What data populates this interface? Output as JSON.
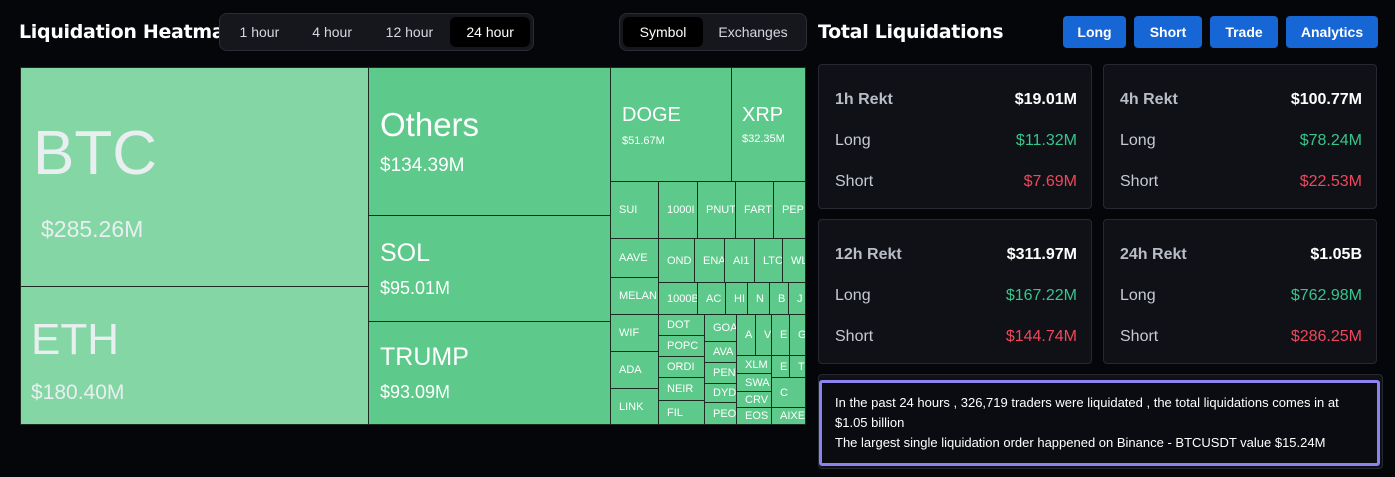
{
  "heatmap": {
    "title": "Liquidation Heatmap",
    "time_tabs": [
      "1 hour",
      "4 hour",
      "12 hour",
      "24 hour"
    ],
    "active_time_tab": "24 hour",
    "view_tabs": [
      "Symbol",
      "Exchanges"
    ],
    "active_view_tab": "Symbol",
    "colors": {
      "tile": "#5dc98a",
      "tile_light": "#84d7a5"
    },
    "tiles": {
      "btc": {
        "name": "BTC",
        "value": "$285.26M"
      },
      "eth": {
        "name": "ETH",
        "value": "$180.40M"
      },
      "others": {
        "name": "Others",
        "value": "$134.39M"
      },
      "sol": {
        "name": "SOL",
        "value": "$95.01M"
      },
      "trump": {
        "name": "TRUMP",
        "value": "$93.09M"
      },
      "doge": {
        "name": "DOGE",
        "value": "$51.67M"
      },
      "xrp": {
        "name": "XRP",
        "value": "$32.35M"
      }
    },
    "small_tiles": {
      "sui": "SUI",
      "t1000a": "1000I",
      "pnut": "PNUT",
      "fart": "FART",
      "pep": "PEP",
      "aave": "AAVE",
      "ond": "OND",
      "ena": "ENA",
      "ai": "AI1",
      "ltc": "LTC",
      "wl": "WL",
      "melan": "MELAN",
      "t1000b": "1000B",
      "ac": "AC",
      "hi": "HI",
      "n": "N",
      "b": "B",
      "j": "J",
      "wif": "WIF",
      "dot": "DOT",
      "goa": "GOA",
      "a": "A",
      "v": "V",
      "e": "E",
      "g": "G",
      "ada": "ADA",
      "popc": "POPC",
      "ava": "AVA",
      "xlm": "XLM",
      "ordi": "ORDI",
      "pen": "PEN",
      "e2": "E",
      "t": "T",
      "link": "LINK",
      "neir": "NEIR",
      "swa": "SWA",
      "dyd": "DYD",
      "crv": "CRV",
      "c": "C",
      "fil": "FIL",
      "peo": "PEO",
      "eos": "EOS",
      "aixe": "AIXE"
    }
  },
  "total": {
    "title": "Total Liquidations",
    "buttons": [
      "Long",
      "Short",
      "Trade",
      "Analytics"
    ],
    "button_color": "#1666d6",
    "cards": [
      {
        "label": "1h Rekt",
        "total": "$19.01M",
        "long_label": "Long",
        "long": "$11.32M",
        "short_label": "Short",
        "short": "$7.69M"
      },
      {
        "label": "4h Rekt",
        "total": "$100.77M",
        "long_label": "Long",
        "long": "$78.24M",
        "short_label": "Short",
        "short": "$22.53M"
      },
      {
        "label": "12h Rekt",
        "total": "$311.97M",
        "long_label": "Long",
        "long": "$167.22M",
        "short_label": "Short",
        "short": "$144.74M"
      },
      {
        "label": "24h Rekt",
        "total": "$1.05B",
        "long_label": "Long",
        "long": "$762.98M",
        "short_label": "Short",
        "short": "$286.25M"
      }
    ],
    "colors": {
      "long": "#37c58b",
      "short": "#f0475c"
    },
    "summary_line1": "In the past 24 hours , 326,719 traders were liquidated , the total liquidations comes in at $1.05 billion",
    "summary_line2": "The largest single liquidation order happened on Binance - BTCUSDT value $15.24M"
  }
}
